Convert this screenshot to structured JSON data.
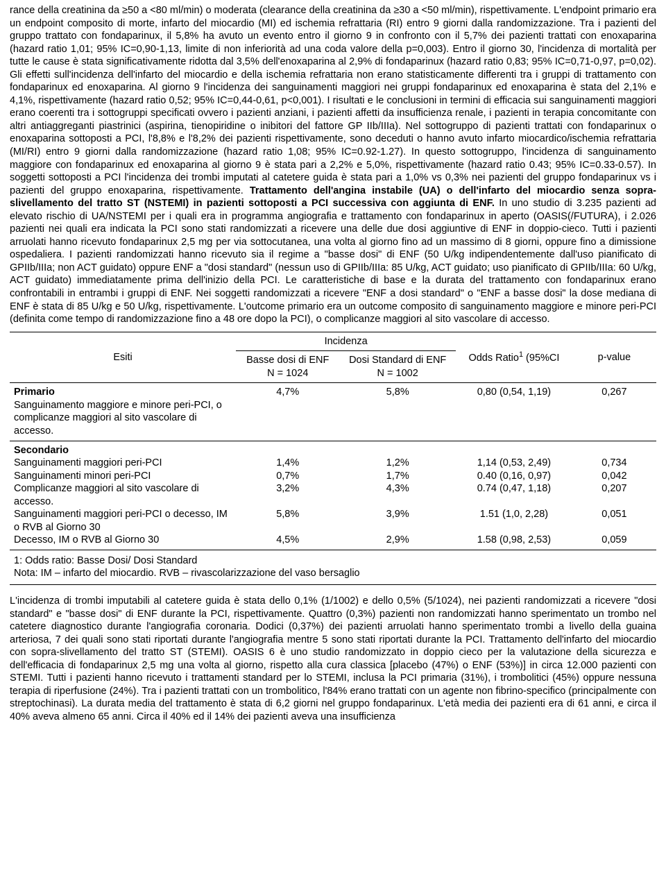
{
  "paragraph1": {
    "t1": "rance della creatinina da ≥50 a <80 ml/min) o moderata (clearance della creatinina da ≥30 a <50 ml/min), rispettivamente. L'endpoint primario era un endpoint composito di morte, infarto del miocardio (MI) ed ischemia refrattaria (RI) entro 9 giorni dalla randomizzazione. Tra i pazienti del gruppo trattato con fondaparinux, il 5,8% ha avuto un evento entro il giorno 9 in confronto con il 5,7% dei pazienti trattati con enoxaparina (hazard ratio 1,01; 95% IC=0,90-1,13, limite di non inferiorità ad una coda valore della p=0,003). Entro il giorno 30, l'incidenza di mortalità per tutte le cause è stata significativamente ridotta dal 3,5% dell'enoxaparina al 2,9% di fondaparinux (hazard ratio 0,83; 95% IC=0,71-0,97, p=0,02). Gli effetti sull'incidenza dell'infarto del miocardio e della ischemia refrattaria non erano statisticamente differenti tra i gruppi di trattamento con fondaparinux ed enoxaparina. Al giorno 9 l'incidenza dei sanguinamenti maggiori nei gruppi fondaparinux ed enoxaparina è stata del 2,1% e 4,1%, rispettivamente (hazard ratio 0,52; 95% IC=0,44-0,61, p<0,001). I risultati e le conclusioni in termini di efficacia sui sanguinamenti maggiori erano coerenti tra i sottogruppi specificati ovvero i pazienti anziani, i pazienti affetti da insufficienza renale, i pazienti in terapia concomitante con altri antiaggreganti piastrinici (aspirina, tienopiridine o inibitori del fattore GP IIb/IIIa). Nel sottogruppo di pazienti trattati con fondaparinux o enoxaparina sottoposti a PCI, l'8,8% e l'8,2% dei pazienti rispettivamente, sono deceduti o hanno avuto infarto miocardico/ischemia refrattaria (MI/RI) entro 9 giorni dalla randomizzazione (hazard ratio 1,08; 95% IC=0.92-1.27). In questo sottogruppo, l'incidenza di sanguinamento maggiore con fondaparinux ed enoxaparina al giorno 9 è stata pari a 2,2% e 5,0%, rispettivamente (hazard ratio 0.43; 95% IC=0.33-0.57). In soggetti sottoposti a PCI l'incidenza dei trombi imputati al catetere guida è stata pari a 1,0% vs 0,3% nei pazienti del gruppo fondaparinux vs i pazienti del gruppo enoxaparina, rispettivamente. ",
    "b1": "Trattamento dell'angina instabile (UA) o dell'infarto del miocardio senza sopra-slivellamento del tratto ST (NSTEMI) in pazienti sottoposti a PCI successiva con aggiunta di ENF.",
    "t2": " In uno studio di 3.235 pazienti ad elevato rischio di UA/NSTEMI per i quali era in programma angiografia e trattamento con fondaparinux in aperto (OASIS(/FUTURA), i 2.026 pazienti nei quali era indicata la PCI sono stati randomizzati a ricevere una  delle due dosi aggiuntive di ENF in doppio-cieco. Tutti i pazienti arruolati hanno ricevuto fondaparinux 2,5 mg per via sottocutanea, una volta al giorno fino ad un massimo di 8 giorni, oppure fino a dimissione ospedaliera. I pazienti randomizzati hanno ricevuto sia il regime a \"basse dosi\" di ENF (50 U/kg indipendentemente dall'uso pianificato di GPIIb/IIIa; non ACT guidato) oppure ENF a \"dosi standard\" (nessun uso di GPIIb/IIIa: 85 U/kg, ACT guidato; uso pianificato di GPIIb/IIIa: 60 U/kg, ACT guidato) immediatamente prima dell'inizio della PCI. Le caratteristiche di base e la durata del trattamento con fondaparinux erano confrontabili in entrambi i gruppi di ENF. Nei soggetti randomizzati a ricevere \"ENF a dosi standard\" o \"ENF a basse dosi\" la dose mediana di ENF è stata di 85 U/kg e 50 U/kg, rispettivamente. L'outcome primario era un outcome composito di sanguinamento maggiore e minore peri-PCI (definita come tempo di randomizzazione fino a 48 ore dopo la PCI), o complicanze maggiori al sito vascolare di accesso."
  },
  "table": {
    "headers": {
      "esiti": "Esiti",
      "incidenza": "Incidenza",
      "basse_dosi": "Basse dosi di ENF",
      "basse_dosi_n": "N = 1024",
      "dosi_standard": "Dosi Standard di ENF",
      "dosi_standard_n": "N = 1002",
      "odds_ratio_pre": "Odds Ratio",
      "odds_ratio_post": " (95%CI",
      "p_value": "p-value"
    },
    "primary": {
      "label": "Primario",
      "row": {
        "desc": "Sanguinamento maggiore e minore peri-PCI, o complicanze maggiori al sito vascolare di accesso.",
        "low": "4,7%",
        "std": "5,8%",
        "or": "0,80 (0,54, 1,19)",
        "p": "0,267"
      }
    },
    "secondary": {
      "label": "Secondario",
      "rows": [
        {
          "desc": "Sanguinamenti maggiori peri-PCI",
          "low": "1,4%",
          "std": "1,2%",
          "or": "1,14 (0,53, 2,49)",
          "p": "0,734"
        },
        {
          "desc": "Sanguinamenti minori peri-PCI",
          "low": "0,7%",
          "std": "1,7%",
          "or": "0.40 (0,16, 0,97)",
          "p": "0,042"
        },
        {
          "desc": "Complicanze maggiori al sito vascolare di accesso.",
          "low": "3,2%",
          "std": "4,3%",
          "or": "0.74 (0,47, 1,18)",
          "p": "0,207"
        },
        {
          "desc": "Sanguinamenti maggiori peri-PCI o decesso, IM o RVB al Giorno 30",
          "low": "5,8%",
          "std": "3,9%",
          "or": "1.51 (1,0, 2,28)",
          "p": "0,051"
        },
        {
          "desc": "Decesso, IM o  RVB al Giorno 30",
          "low": "4,5%",
          "std": "2,9%",
          "or": "1.58 (0,98, 2,53)",
          "p": "0,059"
        }
      ]
    },
    "footnote1": "1: Odds ratio: Basse Dosi/ Dosi Standard",
    "footnote2": "Nota: IM – infarto del  miocardio.  RVB – rivascolarizzazione del vaso bersaglio"
  },
  "paragraph2": {
    "t1": "L'incidenza di trombi imputabili al catetere guida è stata dello 0,1% (1/1002) e dello 0,5% (5/1024), nei pazienti randomizzati a ricevere \"dosi standard\" e \"basse dosi\" di ENF durante la PCI, rispettivamente. Quattro (0,3%) pazienti non randomizzati hanno sperimentato un trombo nel catetere diagnostico durante l'angiografia coronaria. Dodici (0,37%) dei pazienti arruolati hanno sperimentato trombi a livello della guaina arteriosa, 7 dei quali sono stati riportati durante l'angiografia mentre 5 sono stati riportati durante la PCI. ",
    "b1": "Trattamento dell'infarto del miocardio con sopra-slivellamento del tratto ST (STEMI).",
    "t2": " OASIS 6 è uno studio randomizzato in doppio cieco per la valutazione della sicurezza e dell'efficacia di fondaparinux 2,5 mg una volta al giorno, rispetto alla cura classica [placebo (47%) o ENF (53%)] in circa 12.000 pazienti con STEMI. Tutti i pazienti hanno ricevuto i trattamenti standard per lo STEMI, inclusa la PCI primaria (31%), i trombolitici (45%) oppure nessuna terapia di riperfusione (24%). Tra i pazienti trattati con un trombolitico, l'84% erano trattati con un agente non fibrino-specifico (principalmente con streptochinasi). La durata media del trattamento è stata di 6,2 giorni nel gruppo fondaparinux. L'età media dei pazienti era di 61 anni, e circa il 40% aveva almeno 65 anni. Circa il 40% ed il 14% dei pazienti aveva una insufficienza"
  }
}
